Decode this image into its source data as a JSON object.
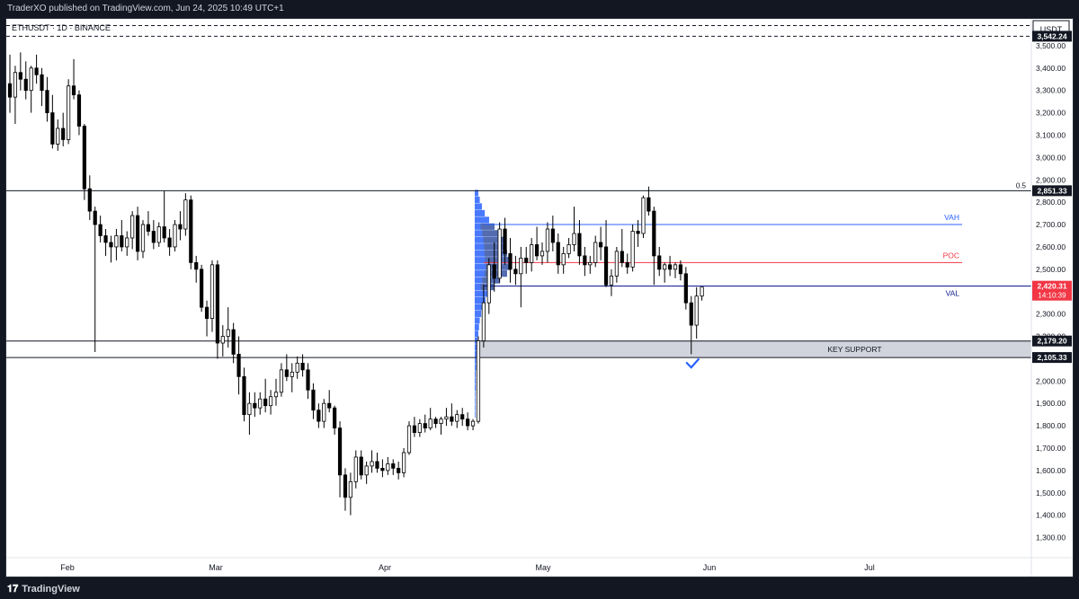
{
  "header": {
    "published": "TraderXO published on TradingView.com, Jun 24, 2025 10:49 UTC+1"
  },
  "footer": {
    "brand": "TradingView",
    "brand_icon": "tradingview-logo-icon"
  },
  "colors": {
    "up_candle": "#ffffff",
    "down_candle": "#000000",
    "wick": "#000000",
    "vah_line": "#2962ff",
    "poc_line": "#f23645",
    "val_line": "#0d1b8c",
    "volume_profile": "#2962ff",
    "support_zone": "#d1d4dc",
    "last_price_badge": "#f23645",
    "check_mark": "#2962ff"
  },
  "chart_data": {
    "type": "candlestick",
    "symbol": "ETHUSDT · 1D · BINANCE",
    "currency": "USDT",
    "x_labels": [
      "Feb",
      "Mar",
      "Apr",
      "May",
      "Jun",
      "Jul"
    ],
    "ylim": [
      1210,
      3620
    ],
    "y_ticks": [
      1300,
      1400,
      1500,
      1600,
      1700,
      1800,
      1900,
      2000,
      2100,
      2200,
      2300,
      2400,
      2500,
      2600,
      2700,
      2800,
      2900,
      3000,
      3100,
      3200,
      3300,
      3400,
      3500
    ],
    "y_tick_labels": [
      "1,300.00",
      "1,400.00",
      "1,500.00",
      "1,600.00",
      "1,700.00",
      "1,800.00",
      "1,900.00",
      "2,000.00",
      "2,100.00",
      "2,200.00",
      "2,300.00",
      "2,400.00",
      "2,500.00",
      "2,600.00",
      "2,700.00",
      "2,800.00",
      "2,900.00",
      "3,000.00",
      "3,100.00",
      "3,200.00",
      "3,300.00",
      "3,400.00",
      "3,500.00"
    ],
    "grid": false,
    "levels": [
      {
        "name": "dashed-top-1",
        "price": 3590,
        "label": "",
        "style": "dashed"
      },
      {
        "name": "dashed-top-2",
        "price": 3542.24,
        "label": "3,542.24",
        "style": "dashed"
      },
      {
        "name": "fib-0.5",
        "price": 2851.33,
        "label": "2,851.33",
        "tag": "0.5",
        "style": "solid"
      },
      {
        "name": "support-top",
        "price": 2179.2,
        "label": "2,179.20",
        "style": "solid"
      },
      {
        "name": "support-bottom",
        "price": 2105.33,
        "label": "2,105.33",
        "style": "solid"
      }
    ],
    "value_area": {
      "vah": 2700,
      "poc": 2530,
      "val": 2425,
      "vah_label": "VAH",
      "poc_label": "POC",
      "val_label": "VAL"
    },
    "support_zone": {
      "top": 2179.2,
      "bottom": 2105.33,
      "label": "KEY SUPPORT"
    },
    "last_price": {
      "value": 2420.31,
      "label": "2,420.31",
      "countdown": "14:10:39"
    },
    "candles": [
      [
        3330,
        3460,
        3200,
        3270
      ],
      [
        3270,
        3410,
        3150,
        3380
      ],
      [
        3380,
        3470,
        3300,
        3350
      ],
      [
        3350,
        3430,
        3260,
        3300
      ],
      [
        3300,
        3410,
        3200,
        3400
      ],
      [
        3400,
        3460,
        3330,
        3370
      ],
      [
        3370,
        3400,
        3230,
        3300
      ],
      [
        3300,
        3360,
        3160,
        3200
      ],
      [
        3200,
        3280,
        3040,
        3060
      ],
      [
        3060,
        3170,
        3030,
        3130
      ],
      [
        3130,
        3200,
        3050,
        3080
      ],
      [
        3080,
        3350,
        3060,
        3320
      ],
      [
        3320,
        3440,
        3260,
        3280
      ],
      [
        3280,
        3300,
        3100,
        3140
      ],
      [
        3140,
        3150,
        2810,
        2860
      ],
      [
        2860,
        2920,
        2720,
        2760
      ],
      [
        2760,
        2780,
        2130,
        2700
      ],
      [
        2700,
        2740,
        2620,
        2650
      ],
      [
        2650,
        2680,
        2560,
        2620
      ],
      [
        2620,
        2650,
        2530,
        2600
      ],
      [
        2600,
        2680,
        2540,
        2650
      ],
      [
        2650,
        2720,
        2580,
        2600
      ],
      [
        2600,
        2670,
        2560,
        2640
      ],
      [
        2640,
        2760,
        2590,
        2740
      ],
      [
        2740,
        2780,
        2540,
        2580
      ],
      [
        2580,
        2720,
        2550,
        2700
      ],
      [
        2700,
        2760,
        2650,
        2670
      ],
      [
        2670,
        2720,
        2590,
        2620
      ],
      [
        2620,
        2710,
        2600,
        2690
      ],
      [
        2690,
        2850,
        2620,
        2640
      ],
      [
        2640,
        2680,
        2560,
        2600
      ],
      [
        2600,
        2720,
        2580,
        2700
      ],
      [
        2700,
        2760,
        2630,
        2680
      ],
      [
        2680,
        2840,
        2650,
        2810
      ],
      [
        2810,
        2830,
        2500,
        2530
      ],
      [
        2530,
        2560,
        2440,
        2500
      ],
      [
        2500,
        2520,
        2310,
        2330
      ],
      [
        2330,
        2360,
        2200,
        2280
      ],
      [
        2280,
        2540,
        2220,
        2520
      ],
      [
        2520,
        2540,
        2100,
        2170
      ],
      [
        2170,
        2250,
        2110,
        2200
      ],
      [
        2200,
        2330,
        2150,
        2230
      ],
      [
        2230,
        2260,
        2080,
        2120
      ],
      [
        2120,
        2200,
        1940,
        2020
      ],
      [
        2020,
        2060,
        1820,
        1850
      ],
      [
        1850,
        1950,
        1760,
        1900
      ],
      [
        1900,
        1950,
        1840,
        1880
      ],
      [
        1880,
        1950,
        1850,
        1920
      ],
      [
        1920,
        2010,
        1860,
        1890
      ],
      [
        1890,
        1960,
        1850,
        1930
      ],
      [
        1930,
        2010,
        1890,
        1950
      ],
      [
        1950,
        2080,
        1930,
        2050
      ],
      [
        2050,
        2120,
        2000,
        2020
      ],
      [
        2020,
        2080,
        1950,
        2040
      ],
      [
        2040,
        2110,
        2010,
        2080
      ],
      [
        2080,
        2120,
        2020,
        2050
      ],
      [
        2050,
        2080,
        1920,
        1960
      ],
      [
        1960,
        1990,
        1830,
        1870
      ],
      [
        1870,
        1900,
        1790,
        1820
      ],
      [
        1820,
        1920,
        1790,
        1900
      ],
      [
        1900,
        1960,
        1860,
        1880
      ],
      [
        1880,
        1890,
        1760,
        1790
      ],
      [
        1790,
        1820,
        1480,
        1580
      ],
      [
        1580,
        1610,
        1420,
        1480
      ],
      [
        1480,
        1590,
        1400,
        1550
      ],
      [
        1550,
        1690,
        1520,
        1660
      ],
      [
        1660,
        1690,
        1560,
        1580
      ],
      [
        1580,
        1640,
        1540,
        1620
      ],
      [
        1620,
        1690,
        1590,
        1640
      ],
      [
        1640,
        1680,
        1590,
        1610
      ],
      [
        1610,
        1650,
        1570,
        1600
      ],
      [
        1600,
        1660,
        1580,
        1630
      ],
      [
        1630,
        1650,
        1580,
        1610
      ],
      [
        1610,
        1640,
        1560,
        1590
      ],
      [
        1590,
        1700,
        1570,
        1680
      ],
      [
        1680,
        1820,
        1670,
        1800
      ],
      [
        1800,
        1840,
        1750,
        1770
      ],
      [
        1770,
        1830,
        1750,
        1810
      ],
      [
        1810,
        1850,
        1770,
        1790
      ],
      [
        1790,
        1880,
        1780,
        1830
      ],
      [
        1830,
        1840,
        1790,
        1810
      ],
      [
        1810,
        1840,
        1760,
        1830
      ],
      [
        1830,
        1880,
        1800,
        1840
      ],
      [
        1840,
        1900,
        1800,
        1820
      ],
      [
        1820,
        1870,
        1790,
        1850
      ],
      [
        1850,
        1880,
        1800,
        1830
      ],
      [
        1830,
        1860,
        1780,
        1800
      ],
      [
        1800,
        1830,
        1780,
        1820
      ],
      [
        1820,
        2200,
        1810,
        2180
      ],
      [
        2180,
        2430,
        2150,
        2350
      ],
      [
        2350,
        2550,
        2300,
        2520
      ],
      [
        2520,
        2620,
        2400,
        2460
      ],
      [
        2460,
        2710,
        2440,
        2680
      ],
      [
        2680,
        2730,
        2520,
        2570
      ],
      [
        2570,
        2640,
        2440,
        2500
      ],
      [
        2500,
        2560,
        2430,
        2480
      ],
      [
        2480,
        2600,
        2330,
        2550
      ],
      [
        2550,
        2600,
        2480,
        2530
      ],
      [
        2530,
        2640,
        2490,
        2610
      ],
      [
        2610,
        2690,
        2540,
        2560
      ],
      [
        2560,
        2620,
        2520,
        2580
      ],
      [
        2580,
        2710,
        2530,
        2680
      ],
      [
        2680,
        2740,
        2580,
        2620
      ],
      [
        2620,
        2660,
        2480,
        2520
      ],
      [
        2520,
        2600,
        2480,
        2570
      ],
      [
        2570,
        2640,
        2550,
        2610
      ],
      [
        2610,
        2780,
        2580,
        2660
      ],
      [
        2660,
        2720,
        2520,
        2560
      ],
      [
        2560,
        2600,
        2470,
        2520
      ],
      [
        2520,
        2560,
        2480,
        2530
      ],
      [
        2530,
        2650,
        2510,
        2620
      ],
      [
        2620,
        2690,
        2540,
        2600
      ],
      [
        2600,
        2720,
        2420,
        2430
      ],
      [
        2430,
        2500,
        2380,
        2470
      ],
      [
        2470,
        2600,
        2440,
        2580
      ],
      [
        2580,
        2680,
        2510,
        2530
      ],
      [
        2530,
        2570,
        2480,
        2510
      ],
      [
        2510,
        2700,
        2490,
        2670
      ],
      [
        2670,
        2720,
        2600,
        2660
      ],
      [
        2660,
        2830,
        2640,
        2820
      ],
      [
        2820,
        2870,
        2740,
        2760
      ],
      [
        2760,
        2780,
        2430,
        2560
      ],
      [
        2560,
        2600,
        2470,
        2500
      ],
      [
        2500,
        2530,
        2440,
        2520
      ],
      [
        2520,
        2560,
        2470,
        2500
      ],
      [
        2500,
        2530,
        2460,
        2520
      ],
      [
        2520,
        2540,
        2450,
        2480
      ],
      [
        2480,
        2510,
        2320,
        2350
      ],
      [
        2350,
        2380,
        2120,
        2250
      ],
      [
        2250,
        2420,
        2190,
        2380
      ],
      [
        2380,
        2420,
        2360,
        2420
      ]
    ],
    "volume_profile_bins": [
      [
        2840,
        0.1
      ],
      [
        2810,
        0.14
      ],
      [
        2780,
        0.2
      ],
      [
        2750,
        0.28
      ],
      [
        2720,
        0.4
      ],
      [
        2690,
        0.55
      ],
      [
        2660,
        0.7
      ],
      [
        2630,
        0.8
      ],
      [
        2600,
        0.86
      ],
      [
        2570,
        0.9
      ],
      [
        2540,
        0.96
      ],
      [
        2510,
        1.0
      ],
      [
        2480,
        0.9
      ],
      [
        2450,
        0.7
      ],
      [
        2420,
        0.55
      ],
      [
        2390,
        0.4
      ],
      [
        2360,
        0.3
      ],
      [
        2330,
        0.22
      ],
      [
        2300,
        0.18
      ],
      [
        2270,
        0.14
      ],
      [
        2240,
        0.12
      ],
      [
        2210,
        0.1
      ],
      [
        2180,
        0.08
      ],
      [
        2150,
        0.06
      ],
      [
        2120,
        0.05
      ],
      [
        2090,
        0.04
      ],
      [
        2060,
        0.04
      ],
      [
        2030,
        0.03
      ],
      [
        2000,
        0.03
      ],
      [
        1970,
        0.03
      ],
      [
        1940,
        0.02
      ],
      [
        1910,
        0.02
      ],
      [
        1880,
        0.02
      ],
      [
        1850,
        0.02
      ]
    ]
  }
}
